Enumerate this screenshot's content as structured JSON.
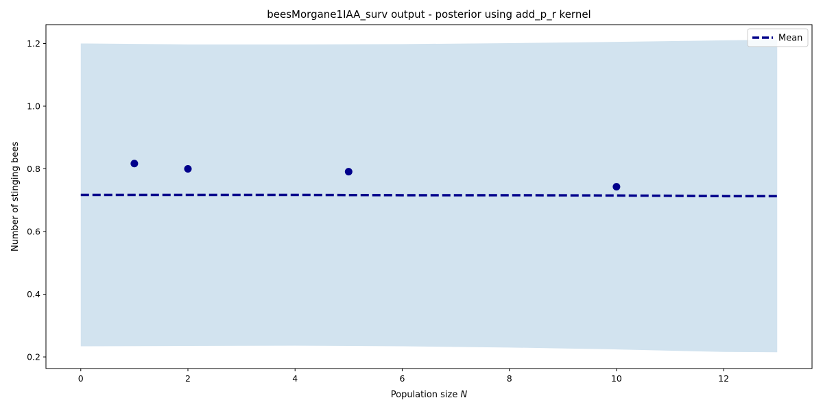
{
  "chart_data": {
    "type": "line",
    "title": "beesMorgane1IAA_surv output - posterior using add_p_r kernel",
    "xlabel_prefix": "Population size ",
    "xlabel_var": "N",
    "ylabel": "Number of stinging bees",
    "xlim": [
      -0.65,
      13.65
    ],
    "ylim": [
      0.163,
      1.26
    ],
    "x_ticks": [
      0,
      2,
      4,
      6,
      8,
      10,
      12
    ],
    "y_ticks": [
      0.2,
      0.4,
      0.6,
      0.8,
      1.0,
      1.2
    ],
    "y_tick_labels": [
      "0.2",
      "0.4",
      "0.6",
      "0.8",
      "1.0",
      "1.2"
    ],
    "grid": false,
    "legend_position": "top-right",
    "series": [
      {
        "name": "Mean",
        "style": "dashed",
        "color": "#00008b",
        "x": [
          0,
          2,
          4,
          6,
          8,
          10,
          12,
          13
        ],
        "y": [
          0.717,
          0.717,
          0.717,
          0.716,
          0.716,
          0.715,
          0.713,
          0.713
        ]
      }
    ],
    "band": {
      "color": "#d2e3ef",
      "x": [
        0,
        2,
        4,
        6,
        8,
        10,
        12,
        13
      ],
      "upper": [
        1.2,
        1.197,
        1.197,
        1.198,
        1.201,
        1.205,
        1.21,
        1.212
      ],
      "lower": [
        0.234,
        0.235,
        0.236,
        0.234,
        0.23,
        0.224,
        0.216,
        0.215
      ]
    },
    "points": {
      "color": "#00008b",
      "x": [
        1,
        2,
        5,
        10
      ],
      "y": [
        0.817,
        0.8,
        0.791,
        0.743
      ]
    }
  }
}
